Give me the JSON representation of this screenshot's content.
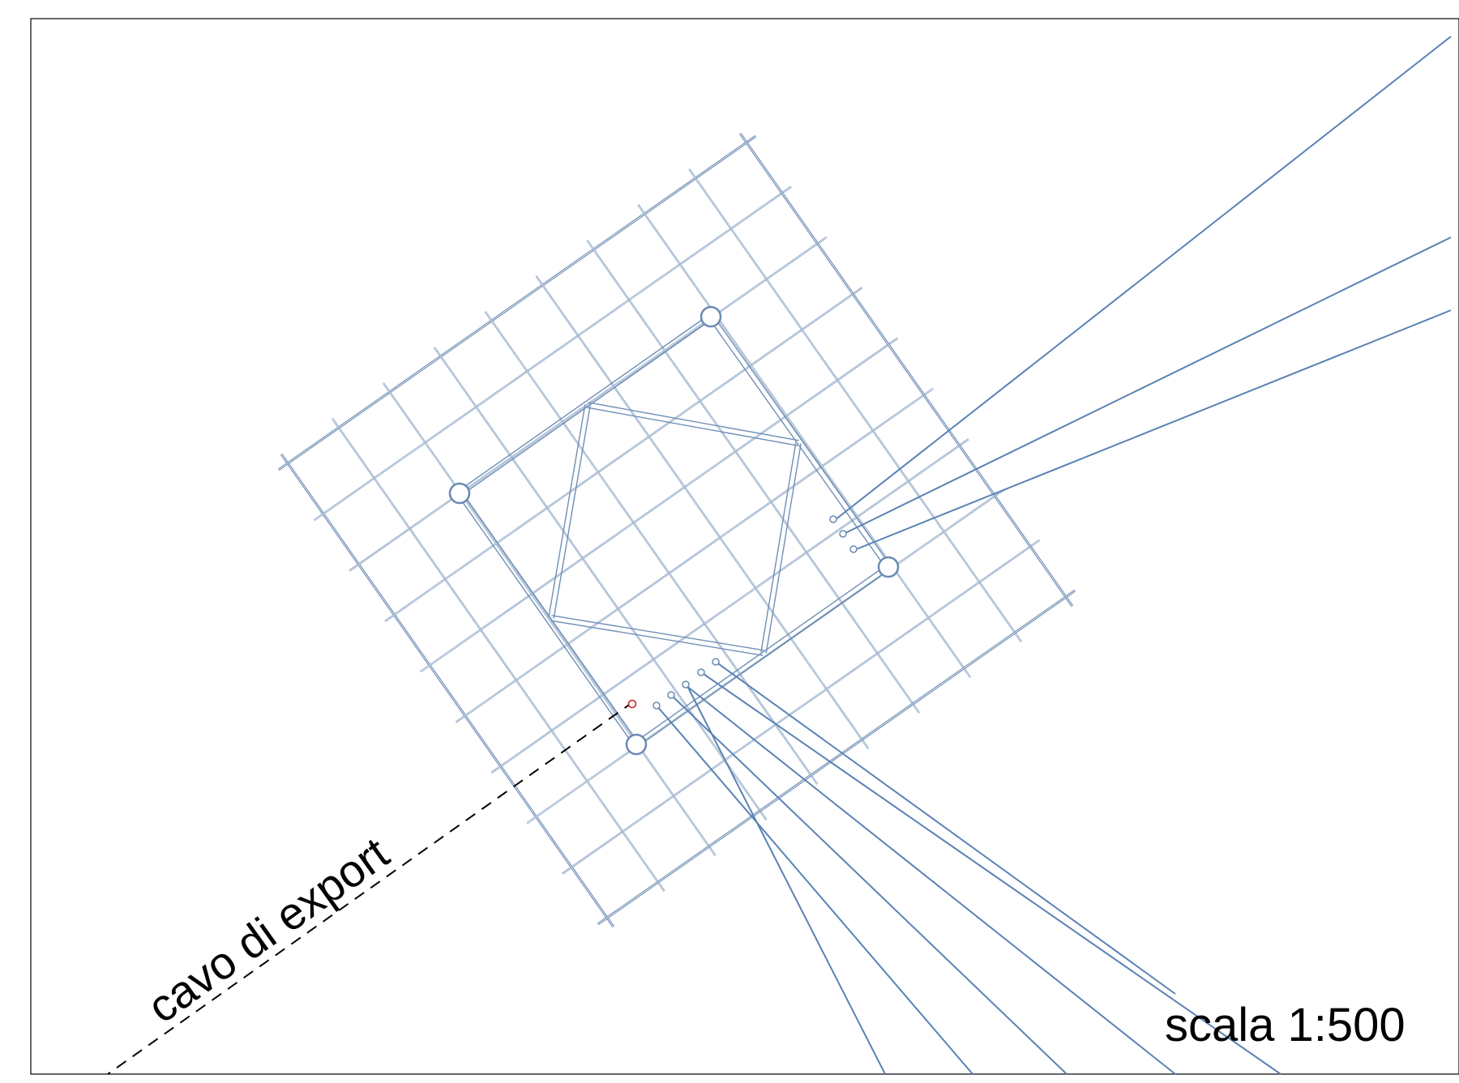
{
  "labels": {
    "export_cable": "cavo di export",
    "scale": "scala 1:500"
  },
  "colors": {
    "grid": "#6f8fb6",
    "cables": "#5a82b4",
    "export_cable": "#000000",
    "highlight_turbine": "#cc2222",
    "background": "#ffffff"
  },
  "legend": {
    "export_cable_style": "dashed"
  }
}
